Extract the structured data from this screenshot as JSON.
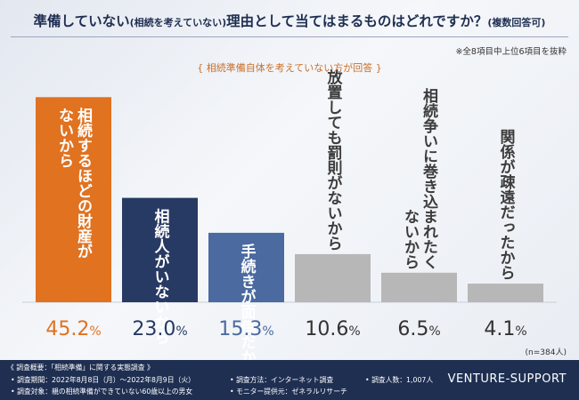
{
  "header": {
    "title_main_1": "準備していない",
    "title_paren": "(相続を考えていない)",
    "title_main_2": "理由として当てはまるものはどれですか？",
    "title_suffix": "(複数回答可)",
    "note": "※全8項目中上位6項目を抜粋",
    "subtitle": "{ 相続準備自体を考えていない方が回答 }"
  },
  "chart_data": {
    "type": "bar",
    "categories": [
      "相続するほどの財産がないから",
      "相続人がいないから",
      "手続きが面倒だから",
      "放置しても罰則がないから",
      "相続争いに巻き込まれたくないから",
      "関係が疎遠だったから"
    ],
    "label_lines": [
      [
        "相続するほどの財産が",
        "ないから"
      ],
      [
        "相続人がいないから"
      ],
      [
        "手続きが面倒だから"
      ],
      [
        "放置しても罰則がないから"
      ],
      [
        "相続争いに巻き込まれたく",
        "ないから"
      ],
      [
        "関係が疎遠だったから"
      ]
    ],
    "values": [
      45.2,
      23.0,
      15.3,
      10.6,
      6.5,
      4.1
    ],
    "value_labels": [
      "45.2",
      "23.0",
      "15.3",
      "10.6",
      "6.5",
      "4.1"
    ],
    "unit": "%",
    "colors": [
      "#e07220",
      "#273a63",
      "#4a6aa0",
      "#b7b7b7",
      "#b7b7b7",
      "#b7b7b7"
    ],
    "value_colors": [
      "#e07220",
      "#273a63",
      "#4a6aa0",
      "#333333",
      "#333333",
      "#333333"
    ],
    "ylim": [
      0,
      48
    ],
    "title": "",
    "xlabel": "",
    "ylabel": "",
    "sample_size": "(n=384人)"
  },
  "footer": {
    "overview": "《 調査概要：「相続準備」に関する実態調査 》",
    "period": "• 調査期間：2022年8月8日（月）〜2022年8月9日（火）",
    "target": "• 調査対象：親の相続準備ができていない60歳以上の男女",
    "method": "• 調査方法：インターネット調査",
    "provider": "• モニター提供元：ゼネラルリサーチ",
    "count": "• 調査人数：1,007人",
    "brand": "VENTURE-SUPPORT"
  }
}
